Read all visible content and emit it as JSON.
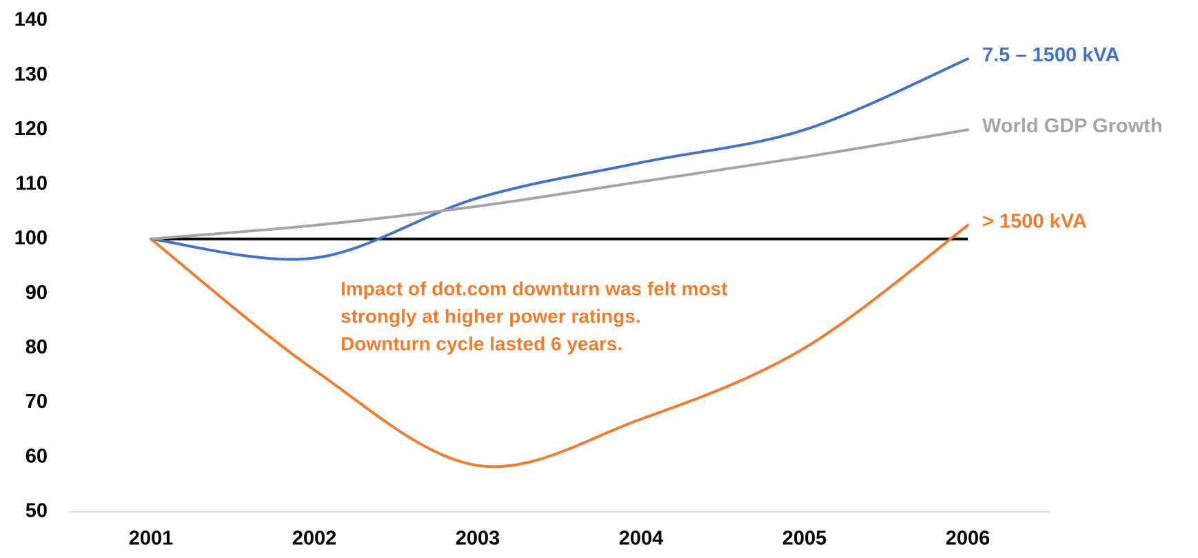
{
  "chart_data": {
    "type": "line",
    "categories": [
      "2001",
      "2002",
      "2003",
      "2004",
      "2005",
      "2006"
    ],
    "series": [
      {
        "name": "7.5 – 1500 kVA",
        "color": "#4472c4",
        "values": [
          100,
          96.5,
          107.5,
          114,
          120,
          133
        ]
      },
      {
        "name": "World GDP Growth",
        "color": "#a5a5a5",
        "values": [
          100,
          102.5,
          106,
          110.5,
          115,
          120
        ]
      },
      {
        "name": "> 1500 kVA",
        "color": "#ed7d31",
        "values": [
          100,
          76,
          58.5,
          67,
          80,
          102.5
        ]
      }
    ],
    "baseline": 100,
    "baseline_color": "#000000",
    "ylim": [
      50,
      140
    ],
    "yticks": [
      50,
      60,
      70,
      80,
      90,
      100,
      110,
      120,
      130,
      140
    ],
    "grid": false,
    "smooth": true,
    "annotation": {
      "lines": [
        "Impact of dot.com downturn was felt most",
        "strongly at higher power ratings.",
        "Downturn cycle lasted 6 years."
      ],
      "color": "#ed7d31"
    }
  }
}
